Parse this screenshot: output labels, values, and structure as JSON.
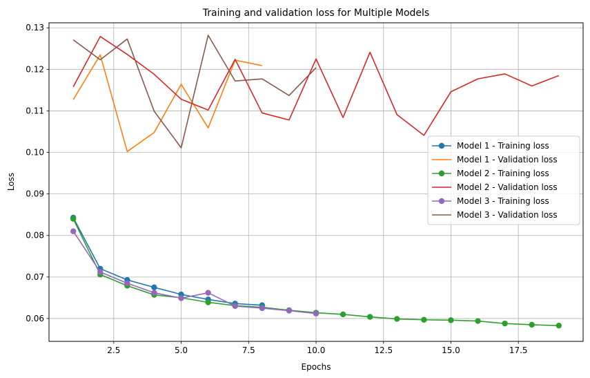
{
  "chart_data": {
    "type": "line",
    "title": "Training and validation loss for Multiple Models",
    "xlabel": "Epochs",
    "ylabel": "Loss",
    "xlim": [
      0.1,
      19.9
    ],
    "ylim": [
      0.0545,
      0.1312
    ],
    "xticks": [
      2.5,
      5.0,
      7.5,
      10.0,
      12.5,
      15.0,
      17.5
    ],
    "xtick_labels": [
      "2.5",
      "5.0",
      "7.5",
      "10.0",
      "12.5",
      "15.0",
      "17.5"
    ],
    "yticks": [
      0.06,
      0.07,
      0.08,
      0.09,
      0.1,
      0.11,
      0.12,
      0.13
    ],
    "ytick_labels": [
      "0.06",
      "0.07",
      "0.08",
      "0.09",
      "0.10",
      "0.11",
      "0.12",
      "0.13"
    ],
    "grid": true,
    "legend_position": "center-right",
    "series": [
      {
        "name": "Model 1 - Training loss",
        "color": "#1f77b4",
        "marker": "circle",
        "x": [
          1,
          2,
          3,
          4,
          5,
          6,
          7,
          8
        ],
        "y": [
          0.0843,
          0.072,
          0.0693,
          0.0675,
          0.0658,
          0.0646,
          0.0636,
          0.0632
        ]
      },
      {
        "name": "Model 1 - Validation loss",
        "color": "#ff7f0e",
        "marker": "none",
        "x": [
          1,
          2,
          3,
          4,
          5,
          6,
          7,
          8
        ],
        "y": [
          0.1127,
          0.1235,
          0.1002,
          0.1048,
          0.1164,
          0.1059,
          0.1222,
          0.1209
        ]
      },
      {
        "name": "Model 2 - Training loss",
        "color": "#2ca02c",
        "marker": "circle",
        "x": [
          1,
          2,
          3,
          4,
          5,
          6,
          7,
          8,
          9,
          10,
          11,
          12,
          13,
          14,
          15,
          16,
          17,
          18,
          19
        ],
        "y": [
          0.084,
          0.0706,
          0.0679,
          0.0657,
          0.065,
          0.0639,
          0.0631,
          0.0627,
          0.062,
          0.0614,
          0.061,
          0.0604,
          0.0599,
          0.0597,
          0.0596,
          0.0594,
          0.0588,
          0.0585,
          0.0583
        ]
      },
      {
        "name": "Model 2 - Validation loss",
        "color": "#d62728",
        "marker": "none",
        "x": [
          1,
          2,
          3,
          4,
          5,
          6,
          7,
          8,
          9,
          10,
          11,
          12,
          13,
          14,
          15,
          16,
          17,
          18,
          19
        ],
        "y": [
          0.1158,
          0.1279,
          0.1236,
          0.1188,
          0.1128,
          0.1102,
          0.1224,
          0.1095,
          0.1078,
          0.1225,
          0.1084,
          0.1241,
          0.1091,
          0.1041,
          0.1146,
          0.1177,
          0.1189,
          0.116,
          0.1185
        ]
      },
      {
        "name": "Model 3 - Training loss",
        "color": "#9467bd",
        "marker": "circle",
        "x": [
          1,
          2,
          3,
          4,
          5,
          6,
          7,
          8,
          9,
          10
        ],
        "y": [
          0.081,
          0.0712,
          0.0685,
          0.0662,
          0.0649,
          0.0662,
          0.063,
          0.0625,
          0.0619,
          0.0612
        ]
      },
      {
        "name": "Model 3 - Validation loss",
        "color": "#8c564b",
        "marker": "none",
        "x": [
          1,
          2,
          3,
          4,
          5,
          6,
          7,
          8,
          9,
          10
        ],
        "y": [
          0.1271,
          0.1223,
          0.1273,
          0.1099,
          0.1011,
          0.1282,
          0.1172,
          0.1177,
          0.1137,
          0.1204
        ]
      }
    ]
  }
}
